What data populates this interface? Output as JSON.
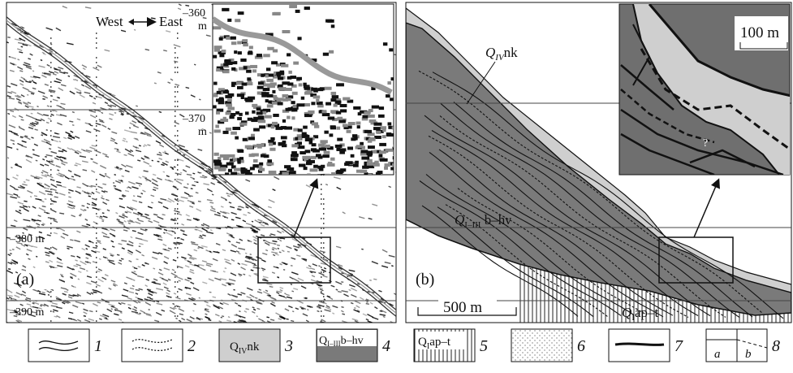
{
  "panel_a": {
    "label": "(a)",
    "direction_west": "West",
    "direction_east": "East",
    "depth_labels": [
      {
        "number": "–360",
        "unit": "m"
      },
      {
        "number": "–370",
        "unit": "m"
      },
      {
        "text": "–380 m"
      },
      {
        "text": "–390 m"
      }
    ]
  },
  "panel_b": {
    "label": "(b)",
    "scale_bar": "500 m",
    "inset_scale": "100 m",
    "inset_mark": "?",
    "formations": [
      {
        "prefix": "Q",
        "sub": "IV",
        "suffix": "nk"
      },
      {
        "prefix": "Q",
        "sub": "I–III",
        "suffix": " b–hν"
      },
      {
        "prefix": "Q",
        "sub": "I",
        "suffix": "ap–t"
      }
    ]
  },
  "legend": {
    "numbers": [
      "1",
      "2",
      "3",
      "4",
      "5",
      "6",
      "7",
      "8"
    ],
    "labels": [
      {
        "prefix": "Q",
        "sub": "IV",
        "suffix": "nk"
      },
      {
        "prefix": "Q",
        "sub": "I–III",
        "suffix": "b–hv"
      },
      {
        "prefix": "Q",
        "sub": "I",
        "suffix": "ap–t"
      }
    ],
    "sub_labels": [
      "a",
      "b"
    ]
  }
}
